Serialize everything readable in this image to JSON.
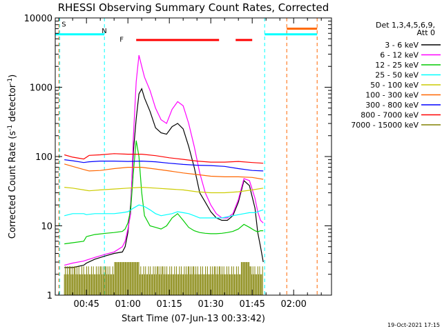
{
  "chart_data": {
    "type": "line",
    "title": "RHESSI Observing Summary Count Rates, Corrected",
    "xlabel": "Start Time (07-Jun-13 00:33:42)",
    "ylabel_main": "Corrected Count Rate (s",
    "ylabel_sup1": "-1",
    "ylabel_mid": " detector",
    "ylabel_sup2": "-1",
    "ylabel_end": ")",
    "footer": "19-Oct-2021 17:15",
    "x_unit": "minutes after 00:00 UT",
    "xlim": [
      33.7,
      133.7
    ],
    "ylim": [
      1,
      10000
    ],
    "yscale": "log",
    "x_ticks": [
      {
        "value": 45,
        "label": "00:45"
      },
      {
        "value": 60,
        "label": "01:00"
      },
      {
        "value": 75,
        "label": "01:15"
      },
      {
        "value": 90,
        "label": "01:30"
      },
      {
        "value": 105,
        "label": "01:45"
      },
      {
        "value": 120,
        "label": "02:00"
      }
    ],
    "y_ticks": [
      {
        "value": 1,
        "label": "1"
      },
      {
        "value": 10,
        "label": "10"
      },
      {
        "value": 100,
        "label": "100"
      },
      {
        "value": 1000,
        "label": "1000"
      },
      {
        "value": 10000,
        "label": "10000"
      }
    ],
    "legend": {
      "header_line1": "Det 1,3,4,5,6,9,",
      "header_line2": "Att 0"
    },
    "series": [
      {
        "name": "3 - 6 keV",
        "color": "#000000",
        "x": [
          37,
          40,
          44,
          45,
          48,
          52,
          55,
          58,
          59,
          60,
          61,
          62,
          63,
          64,
          65,
          66,
          68,
          70,
          72,
          74,
          76,
          78,
          80,
          82,
          84,
          86,
          88,
          90,
          92,
          94,
          96,
          98,
          100,
          102,
          104,
          106,
          107,
          108,
          109
        ],
        "y": [
          2.5,
          2.5,
          2.7,
          2.9,
          3.3,
          3.7,
          4.0,
          4.2,
          5,
          8,
          20,
          120,
          350,
          800,
          950,
          700,
          450,
          260,
          220,
          210,
          270,
          300,
          250,
          140,
          70,
          30,
          22,
          16,
          13,
          12,
          12,
          14,
          22,
          45,
          38,
          18,
          8,
          5,
          3
        ]
      },
      {
        "name": "6 - 12 keV",
        "color": "#ff00ff",
        "x": [
          37,
          40,
          44,
          45,
          48,
          52,
          55,
          58,
          59,
          60,
          61,
          62,
          63,
          64,
          65,
          66,
          68,
          70,
          72,
          74,
          76,
          78,
          80,
          82,
          84,
          86,
          88,
          90,
          92,
          94,
          96,
          98,
          100,
          102,
          104,
          106,
          107,
          108,
          109
        ],
        "y": [
          2.7,
          2.9,
          3.1,
          3.2,
          3.5,
          3.9,
          4.2,
          5,
          6,
          9,
          15,
          200,
          1200,
          2900,
          2000,
          1400,
          900,
          500,
          340,
          300,
          480,
          620,
          540,
          300,
          140,
          58,
          30,
          20,
          15,
          13,
          13,
          15,
          24,
          48,
          45,
          25,
          16,
          12,
          11
        ]
      },
      {
        "name": "12 - 25 keV",
        "color": "#00cc00",
        "x": [
          37,
          40,
          44,
          45,
          48,
          52,
          55,
          58,
          59,
          60,
          61,
          62,
          63,
          64,
          65,
          66,
          68,
          70,
          72,
          74,
          76,
          78,
          80,
          82,
          84,
          86,
          88,
          90,
          92,
          94,
          96,
          98,
          100,
          102,
          104,
          106,
          107,
          108,
          109
        ],
        "y": [
          5.5,
          5.7,
          6,
          7,
          7.5,
          7.8,
          8,
          8.3,
          9,
          11,
          17,
          60,
          170,
          100,
          30,
          14,
          10,
          9.5,
          9,
          10,
          13,
          15,
          12,
          9.5,
          8.5,
          8,
          7.8,
          7.7,
          7.7,
          7.8,
          8,
          8.3,
          9,
          10.5,
          9.5,
          8.5,
          8.2,
          8.5,
          8.5
        ]
      },
      {
        "name": "25 - 50 keV",
        "color": "#00ffff",
        "x": [
          37,
          40,
          44,
          45,
          48,
          52,
          55,
          58,
          60,
          62,
          64,
          66,
          68,
          70,
          72,
          74,
          76,
          78,
          80,
          82,
          84,
          86,
          88,
          90,
          92,
          94,
          96,
          98,
          100,
          102,
          104,
          106,
          108,
          109
        ],
        "y": [
          14,
          15,
          15,
          14.5,
          15,
          15,
          15,
          15.5,
          16,
          18,
          20,
          19,
          17,
          15,
          14,
          14.5,
          15,
          16,
          15.5,
          15,
          14,
          13,
          13,
          13,
          13,
          13,
          13.5,
          14,
          14.5,
          15,
          15.5,
          15.5,
          16.5,
          17
        ]
      },
      {
        "name": "50 - 100 keV",
        "color": "#cccc00",
        "x": [
          37,
          40,
          44,
          46,
          50,
          55,
          60,
          65,
          70,
          75,
          80,
          85,
          90,
          95,
          100,
          105,
          109
        ],
        "y": [
          36,
          35,
          33,
          32,
          33,
          34,
          35,
          36,
          35,
          34,
          33,
          31,
          30,
          30,
          31,
          33,
          35
        ]
      },
      {
        "name": "100 - 300 keV",
        "color": "#ff6600",
        "x": [
          37,
          40,
          44,
          46,
          50,
          55,
          60,
          65,
          70,
          75,
          80,
          85,
          90,
          95,
          100,
          105,
          109
        ],
        "y": [
          78,
          72,
          65,
          62,
          63,
          67,
          70,
          70,
          66,
          62,
          58,
          55,
          52,
          51,
          51,
          50,
          47
        ]
      },
      {
        "name": "300 - 800 keV",
        "color": "#0000ff",
        "x": [
          37,
          40,
          44,
          46,
          50,
          55,
          60,
          65,
          70,
          75,
          80,
          85,
          90,
          95,
          100,
          105,
          109
        ],
        "y": [
          90,
          87,
          82,
          84,
          86,
          86,
          85,
          86,
          84,
          80,
          77,
          75,
          74,
          72,
          67,
          63,
          62
        ]
      },
      {
        "name": "800 - 7000 keV",
        "color": "#ff0000",
        "x": [
          37,
          40,
          44,
          46,
          50,
          55,
          60,
          65,
          70,
          75,
          80,
          85,
          90,
          95,
          100,
          105,
          109
        ],
        "y": [
          106,
          98,
          92,
          104,
          106,
          110,
          108,
          108,
          103,
          96,
          91,
          86,
          83,
          83,
          85,
          82,
          80
        ]
      },
      {
        "name": "7000 - 15000 keV",
        "color": "#808000",
        "x": [
          37,
          45,
          52,
          58,
          60,
          65,
          70,
          75,
          80,
          85,
          90,
          95,
          100,
          105,
          109
        ],
        "y": [
          2,
          2,
          2,
          2,
          2,
          2,
          2,
          2,
          2,
          2,
          2,
          2,
          2,
          2,
          2
        ]
      }
    ],
    "annotations": [
      {
        "text": "S",
        "color": "#ff6600",
        "x": 36
      },
      {
        "text": "N",
        "color": "#00ffff",
        "x": 50.5
      },
      {
        "text": "F",
        "color": "#ff0000",
        "x": 57
      }
    ],
    "state_bars": {
      "saa": {
        "label": "S",
        "color": "#ff6600",
        "y_level": 7000,
        "intervals": [
          [
            117.5,
            128.5
          ]
        ]
      },
      "night": {
        "label": "N",
        "color": "#00ffff",
        "y_level": 5800,
        "intervals": [
          [
            33.7,
            51.5
          ],
          [
            109.5,
            128.5
          ]
        ]
      },
      "flare": {
        "label": "F",
        "color": "#ff0000",
        "y_level": 4800,
        "intervals": [
          [
            63,
            93
          ],
          [
            99,
            105
          ]
        ]
      }
    },
    "vlines": [
      {
        "x": 35,
        "color": "#ff6600"
      },
      {
        "x": 35.3,
        "color": "#00ffff"
      },
      {
        "x": 51.5,
        "color": "#00ffff"
      },
      {
        "x": 109.5,
        "color": "#00ffff"
      },
      {
        "x": 117.5,
        "color": "#ff6600"
      },
      {
        "x": 128.5,
        "color": "#ff6600"
      }
    ]
  }
}
